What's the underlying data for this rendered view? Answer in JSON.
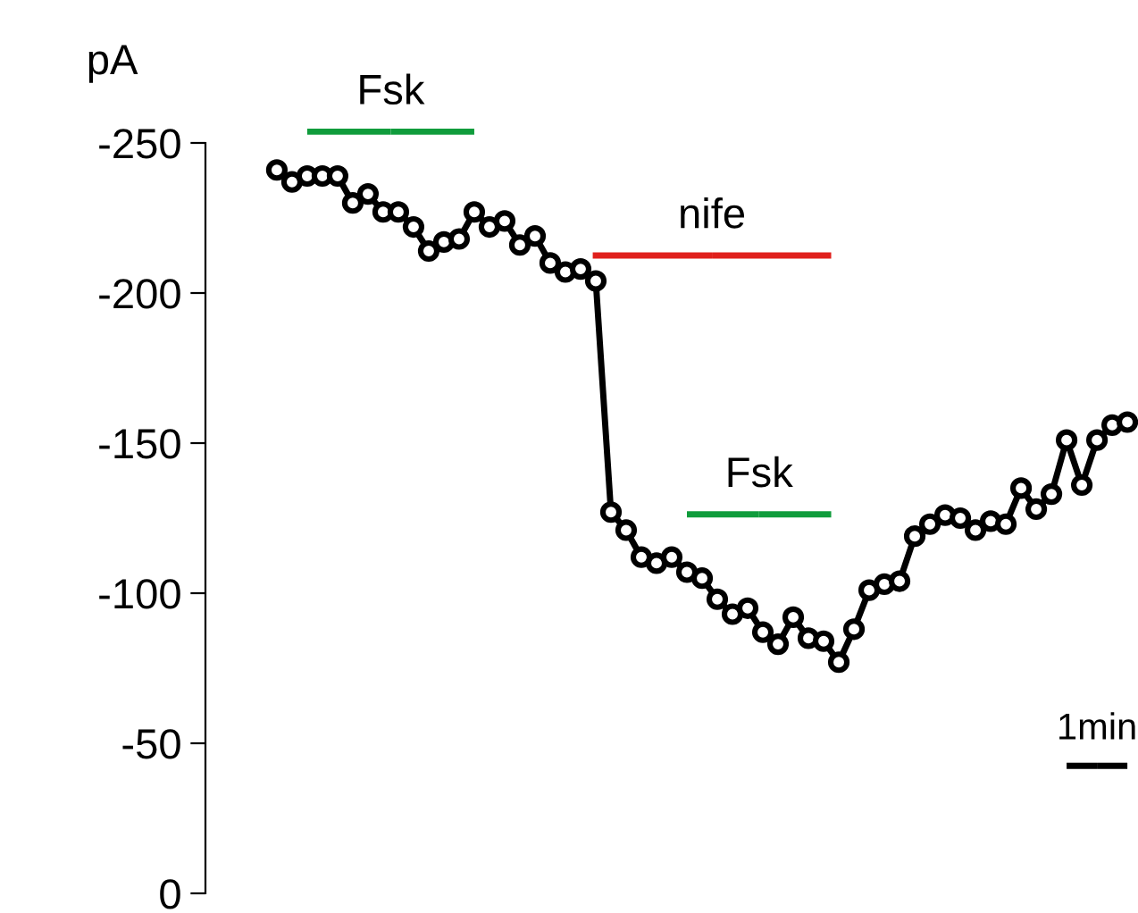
{
  "chart_data": {
    "type": "line",
    "ylabel": "pA",
    "categories": [
      null,
      null,
      null,
      null,
      null,
      null,
      null,
      null,
      null,
      null,
      null,
      null,
      null,
      null,
      null,
      null,
      null,
      null,
      null,
      null,
      null,
      null,
      null,
      null,
      null,
      null,
      null,
      null,
      null,
      null,
      null,
      null,
      null,
      null,
      null,
      null,
      null,
      null,
      null,
      null,
      null,
      null,
      null,
      null,
      null,
      null,
      null,
      null,
      null,
      null,
      null,
      null,
      null,
      null,
      null,
      null,
      null
    ],
    "series": [
      {
        "color": "#000000",
        "values": [
          -241,
          -237,
          -239,
          -239,
          -239,
          -230,
          -233,
          -227,
          -227,
          -222,
          -214,
          -217,
          -218,
          -227,
          -222,
          -224,
          -216,
          -219,
          -210,
          -207,
          -208,
          -204,
          -127,
          -121,
          -112,
          -110,
          -112,
          -107,
          -105,
          -98,
          -93,
          -95,
          -87,
          -83,
          -92,
          -85,
          -84,
          -77,
          -88,
          -101,
          -103,
          -104,
          -119,
          -123,
          -126,
          -125,
          -121,
          -124,
          -123,
          -135,
          -128,
          -133,
          -151,
          -136,
          -151,
          -156,
          -157
        ]
      }
    ],
    "ylim": [
      0,
      -250
    ],
    "yticks": [
      0,
      -50,
      -100,
      -150,
      -200,
      -250
    ],
    "marker": "circle",
    "line_style": "solid",
    "grid": false,
    "tick_labels": "y",
    "annotations": [
      "Fsk",
      "nife",
      "Fsk",
      "1min"
    ]
  }
}
